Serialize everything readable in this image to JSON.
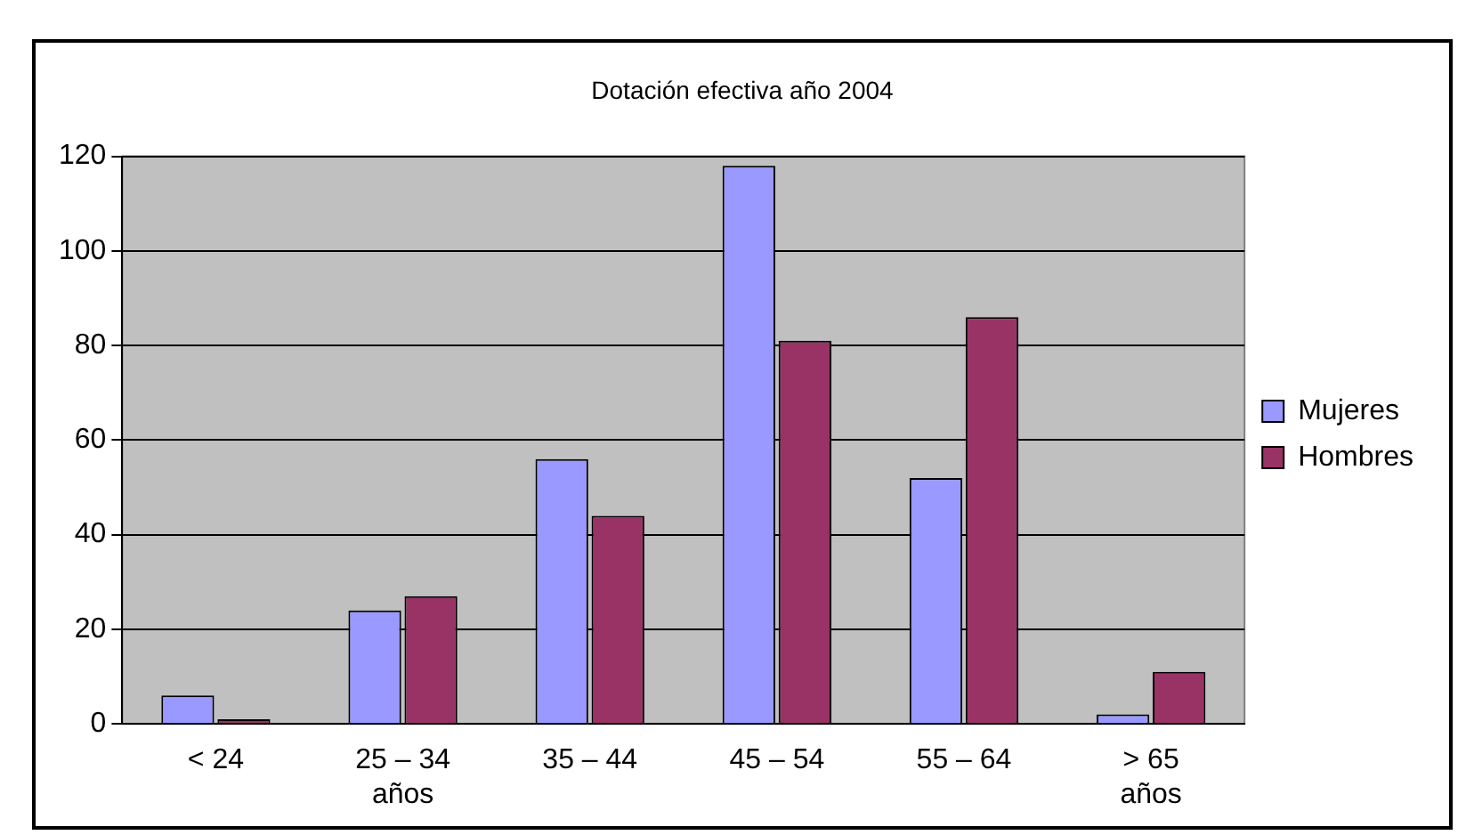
{
  "chart_data": {
    "type": "bar",
    "title": "Dotación efectiva año 2004",
    "categories": [
      "< 24",
      "25 – 34\naños",
      "35 – 44",
      "45 – 54",
      "55 – 64",
      "> 65\naños"
    ],
    "series": [
      {
        "name": "Mujeres",
        "color": "#9999ff",
        "values": [
          6,
          24,
          56,
          118,
          52,
          2
        ]
      },
      {
        "name": "Hombres",
        "color": "#993366",
        "values": [
          1,
          27,
          44,
          81,
          86,
          11
        ]
      }
    ],
    "ylim": [
      0,
      120
    ],
    "yticks": [
      0,
      20,
      40,
      60,
      80,
      100,
      120
    ],
    "grid": "y",
    "legend": "right"
  }
}
